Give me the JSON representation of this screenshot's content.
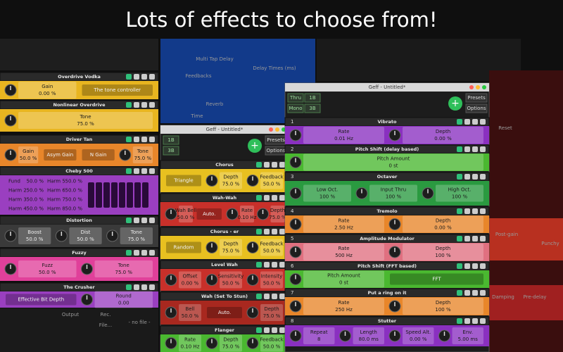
{
  "title": "Lots of effects to choose from!",
  "background_labels": [
    "Multi Tap Delay",
    "Feedbacks",
    "Delay Times (ms)",
    "Reverb",
    "Time",
    "Reset",
    "Post-gain",
    "Punchy",
    "Damping",
    "Pre-delay",
    "Output",
    "Rec.",
    "File...",
    "- no file -"
  ],
  "windows": [
    {
      "effects": [
        {
          "name": "Overdrive Vodka",
          "color": "#e8b520",
          "params": [
            {
              "label": "Gain",
              "value": "0.00 %"
            },
            {
              "label": "The tone controller"
            }
          ]
        },
        {
          "name": "Nonlinear Overdrive",
          "color": "#e8b520",
          "params": [
            {
              "label": "Tone",
              "value": "75.0 %"
            }
          ]
        },
        {
          "name": "Driver Tan",
          "color": "#e8862a",
          "params": [
            {
              "label": "Gain",
              "value": "50.0 %"
            },
            {
              "label": "Asym Gain"
            },
            {
              "label": "N Gain"
            },
            {
              "label": "Tone",
              "value": "75.0 %"
            }
          ]
        },
        {
          "name": "Cheby 500",
          "color": "#9a3fc0",
          "params": [
            {
              "label": "Fund",
              "value": "50.0 %"
            },
            {
              "label": "Harm 2",
              "value": "50.0 %"
            },
            {
              "label": "Harm 3",
              "value": "50.0 %"
            },
            {
              "label": "Harm 4",
              "value": "50.0 %"
            },
            {
              "label": "Harm 5",
              "value": "50.0 %"
            },
            {
              "label": "Harm 6",
              "value": "50.0 %"
            },
            {
              "label": "Harm 7",
              "value": "50.0 %"
            },
            {
              "label": "Harm 8",
              "value": "50.0 %"
            }
          ]
        },
        {
          "name": "Distortion",
          "color": "#3a3a3a",
          "params": [
            {
              "label": "Boost",
              "value": "50.0 %"
            },
            {
              "label": "Dist",
              "value": "50.0 %"
            },
            {
              "label": "Tone",
              "value": "75.0 %"
            }
          ]
        },
        {
          "name": "Fuzzy",
          "color": "#e0409a",
          "params": [
            {
              "label": "Fuzz",
              "value": "50.0 %"
            },
            {
              "label": "Tone",
              "value": "75.0 %"
            }
          ]
        },
        {
          "name": "The Crusher",
          "color": "#9a3fc0",
          "params": [
            {
              "label": "Effective Bit Depth"
            },
            {
              "label": "Round",
              "value": "0.00"
            }
          ]
        }
      ]
    },
    {
      "title": "Geff - Untitled*",
      "toolbar": [
        "1B",
        "3B",
        "Presets",
        "Options"
      ],
      "effects": [
        {
          "name": "Chorus",
          "color": "#e8c020",
          "params": [
            {
              "label": "Triangle"
            },
            {
              "label": "Depth",
              "value": "75.0 %"
            },
            {
              "label": "Feedback",
              "value": "50.0 %"
            }
          ]
        },
        {
          "name": "Wah-Wah",
          "color": "#c8302a",
          "params": [
            {
              "label": "Wah Bell",
              "value": "50.0 %"
            },
            {
              "label": "Auto."
            },
            {
              "label": "Rate",
              "value": "0.10 Hz"
            },
            {
              "label": "Depth",
              "value": "75.0 %"
            }
          ]
        },
        {
          "name": "Chorus - er",
          "color": "#e8c020",
          "params": [
            {
              "label": "Random"
            },
            {
              "label": "Depth",
              "value": "75.0 %"
            },
            {
              "label": "Feedback",
              "value": "50.0 %"
            }
          ]
        },
        {
          "name": "Level Wah",
          "color": "#c8302a",
          "params": [
            {
              "label": "Offset",
              "value": "0.00 %"
            },
            {
              "label": "Sensitivity",
              "value": "50.0 %"
            },
            {
              "label": "Intensity",
              "value": "50.0 %"
            }
          ]
        },
        {
          "name": "Wah (Set To Stun)",
          "color": "#a8281f",
          "params": [
            {
              "label": "Bell",
              "value": "50.0 %"
            },
            {
              "label": "Auto."
            },
            {
              "label": "Depth",
              "value": "75.0 %"
            }
          ]
        },
        {
          "name": "Flanger",
          "color": "#4ab830",
          "params": [
            {
              "label": "Rate",
              "value": "0.10 Hz"
            },
            {
              "label": "Depth",
              "value": "75.0 %"
            },
            {
              "label": "Feedback",
              "value": "50.0 %"
            }
          ]
        }
      ]
    },
    {
      "title": "Geff - Untitled*",
      "toolbar": [
        "Thru",
        "Mono",
        "1B",
        "3B",
        "Presets",
        "Options"
      ],
      "effects": [
        {
          "number": "1",
          "name": "Vibrato",
          "color": "#8a30c0",
          "params": [
            {
              "label": "Rate",
              "value": "0.01 Hz"
            },
            {
              "label": "Depth",
              "value": "0.00 %"
            }
          ]
        },
        {
          "number": "2",
          "name": "Pitch Shift (delay based)",
          "color": "#4ab830",
          "params": [
            {
              "label": "Pitch Amount",
              "value": "0 st"
            }
          ]
        },
        {
          "number": "3",
          "name": "Octaver",
          "color": "#2a9a40",
          "params": [
            {
              "label": "Low Oct.",
              "value": "100 %"
            },
            {
              "label": "Input Thru",
              "value": "100 %"
            },
            {
              "label": "High Oct.",
              "value": "100 %"
            }
          ]
        },
        {
          "number": "4",
          "name": "Tremolo",
          "color": "#e8862a",
          "params": [
            {
              "label": "Rate",
              "value": "2.50 Hz"
            },
            {
              "label": "Depth",
              "value": "0.00 %"
            }
          ]
        },
        {
          "number": "5",
          "name": "Amplitude Modulator",
          "color": "#e07080",
          "params": [
            {
              "label": "Rate",
              "value": "500 Hz"
            },
            {
              "label": "Depth",
              "value": "100 %"
            }
          ]
        },
        {
          "number": "6",
          "name": "Pitch Shift (FFT based)",
          "color": "#4ab830",
          "params": [
            {
              "label": "Pitch Amount",
              "value": "0 st"
            },
            {
              "label": "FFT"
            }
          ]
        },
        {
          "number": "7",
          "name": "Put a ring on it",
          "color": "#e8862a",
          "params": [
            {
              "label": "Rate",
              "value": "250 Hz"
            },
            {
              "label": "Depth",
              "value": "100 %"
            }
          ]
        },
        {
          "number": "8",
          "name": "Stutter",
          "color": "#8a30c0",
          "params": [
            {
              "label": "Repeat",
              "value": "8"
            },
            {
              "label": "Length",
              "value": "80.0 ms"
            },
            {
              "label": "Speed Alt.",
              "value": "0.00 %"
            },
            {
              "label": "Env.",
              "value": "5.00 ms"
            }
          ]
        }
      ]
    }
  ]
}
